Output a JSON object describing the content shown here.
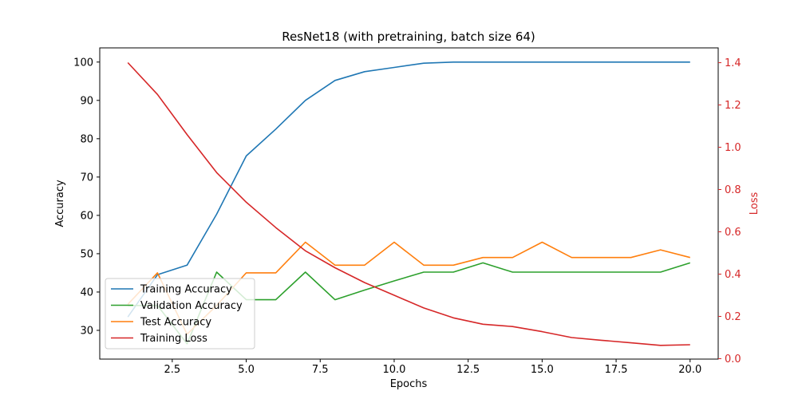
{
  "chart_data": {
    "type": "line",
    "title": "ResNet18 (with pretraining, batch size 64)",
    "xlabel": "Epochs",
    "ylabel": "Accuracy",
    "y2label": "Loss",
    "xlim": [
      0.05,
      20.95
    ],
    "ylim": [
      22.5,
      103.7
    ],
    "y2lim": [
      -0.002,
      1.47
    ],
    "xticks": [
      2.5,
      5.0,
      7.5,
      10.0,
      12.5,
      15.0,
      17.5,
      20.0
    ],
    "xtick_labels": [
      "2.5",
      "5.0",
      "7.5",
      "10.0",
      "12.5",
      "15.0",
      "17.5",
      "20.0"
    ],
    "yticks": [
      30,
      40,
      50,
      60,
      70,
      80,
      90,
      100
    ],
    "ytick_labels": [
      "30",
      "40",
      "50",
      "60",
      "70",
      "80",
      "90",
      "100"
    ],
    "y2ticks": [
      0.0,
      0.2,
      0.4,
      0.6,
      0.8,
      1.0,
      1.2,
      1.4
    ],
    "y2tick_labels": [
      "0.0",
      "0.2",
      "0.4",
      "0.6",
      "0.8",
      "1.0",
      "1.2",
      "1.4"
    ],
    "legend_position": "lower-left",
    "grid": false,
    "x": [
      1,
      2,
      3,
      4,
      5,
      6,
      7,
      8,
      9,
      10,
      11,
      12,
      13,
      14,
      15,
      16,
      17,
      18,
      19,
      20
    ],
    "series": [
      {
        "name": "Training Accuracy",
        "axis": "left",
        "color": "#1f77b4",
        "values": [
          33.5,
          44.5,
          47.0,
          60.3,
          75.5,
          82.5,
          90.0,
          95.2,
          97.5,
          98.6,
          99.7,
          100.0,
          100.0,
          100.0,
          100.0,
          100.0,
          100.0,
          100.0,
          100.0,
          100.0
        ]
      },
      {
        "name": "Validation Accuracy",
        "axis": "left",
        "color": "#2ca02c",
        "values": [
          36.5,
          36.5,
          26.5,
          45.2,
          38.0,
          38.0,
          45.2,
          38.0,
          40.5,
          42.9,
          45.2,
          45.2,
          47.6,
          45.2,
          45.2,
          45.2,
          45.2,
          45.2,
          45.2,
          47.6
        ]
      },
      {
        "name": "Test Accuracy",
        "axis": "left",
        "color": "#ff7f0e",
        "values": [
          36.8,
          45.0,
          29.0,
          36.5,
          45.0,
          45.0,
          53.0,
          47.0,
          47.0,
          53.0,
          47.0,
          47.0,
          49.0,
          49.0,
          53.0,
          49.0,
          49.0,
          49.0,
          51.0,
          49.0
        ]
      },
      {
        "name": "Training Loss",
        "axis": "right",
        "color": "#d62728",
        "values": [
          1.4,
          1.25,
          1.06,
          0.88,
          0.74,
          0.62,
          0.51,
          0.43,
          0.36,
          0.3,
          0.24,
          0.193,
          0.163,
          0.152,
          0.128,
          0.1,
          0.087,
          0.075,
          0.063,
          0.066
        ]
      }
    ]
  }
}
